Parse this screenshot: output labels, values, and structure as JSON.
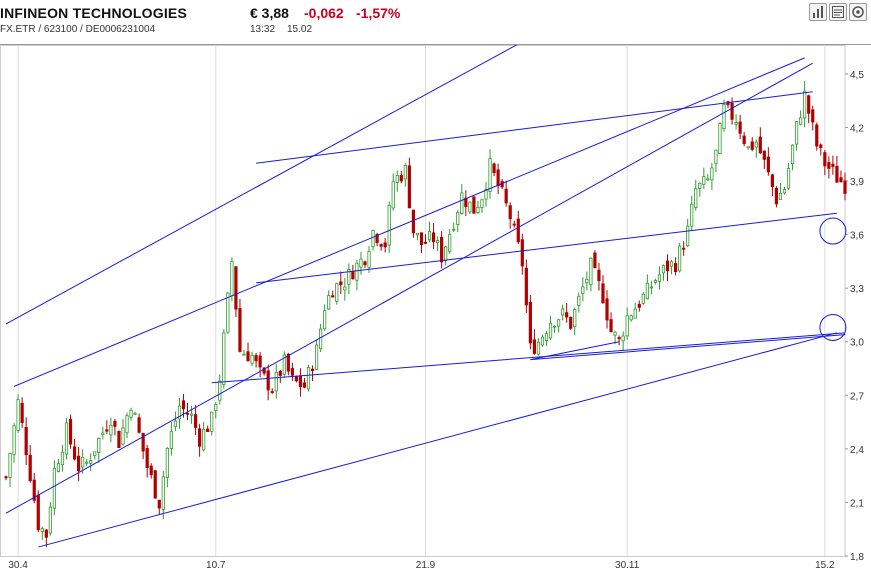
{
  "header": {
    "title": "INFINEON TECHNOLOGIES",
    "subtitle": "FX.ETR  /  623100  /  DE0006231004",
    "price": "€ 3,88",
    "change": "-0,062",
    "change_pct": "-1,57%",
    "time": "13:32",
    "date": "15.02"
  },
  "toolbar": {
    "icons": [
      "bar-chart-icon",
      "news-icon",
      "settings-icon"
    ]
  },
  "colors": {
    "up": "#2e9e2e",
    "down": "#b00000",
    "trendline": "#1a1adf",
    "grid": "#dddddd",
    "negative": "#c8001e"
  },
  "chart_data": {
    "type": "candlestick",
    "title": "",
    "xlabel": "",
    "ylabel": "",
    "ylim": [
      1.8,
      4.55
    ],
    "y_ticks": [
      1.8,
      2.1,
      2.4,
      2.7,
      3.0,
      3.3,
      3.6,
      3.9,
      4.2,
      4.5
    ],
    "y_tick_labels": [
      "1,8",
      "2,1",
      "2,4",
      "2,7",
      "3,0",
      "3,3",
      "3,6",
      "3,9",
      "4,2",
      "4,5"
    ],
    "x_range": [
      0,
      208
    ],
    "x_ticks": [
      {
        "label": "30.4",
        "x": 3
      },
      {
        "label": "10.7",
        "x": 52
      },
      {
        "label": "21.9",
        "x": 104
      },
      {
        "label": "30.11",
        "x": 154
      },
      {
        "label": "15.2",
        "x": 203
      }
    ],
    "grid": "vertical",
    "anchors": [
      [
        0,
        2.24
      ],
      [
        3,
        2.66
      ],
      [
        5,
        2.4
      ],
      [
        8,
        1.98
      ],
      [
        10,
        1.92
      ],
      [
        12,
        2.28
      ],
      [
        15,
        2.5
      ],
      [
        18,
        2.3
      ],
      [
        20,
        2.32
      ],
      [
        23,
        2.45
      ],
      [
        26,
        2.58
      ],
      [
        28,
        2.44
      ],
      [
        31,
        2.66
      ],
      [
        33,
        2.48
      ],
      [
        35,
        2.3
      ],
      [
        38,
        2.1
      ],
      [
        40,
        2.4
      ],
      [
        43,
        2.64
      ],
      [
        46,
        2.58
      ],
      [
        48,
        2.46
      ],
      [
        51,
        2.56
      ],
      [
        53,
        2.8
      ],
      [
        56,
        3.45
      ],
      [
        58,
        2.95
      ],
      [
        61,
        2.92
      ],
      [
        63,
        2.82
      ],
      [
        66,
        2.74
      ],
      [
        69,
        2.88
      ],
      [
        71,
        2.78
      ],
      [
        74,
        2.75
      ],
      [
        77,
        2.95
      ],
      [
        79,
        3.2
      ],
      [
        81,
        3.3
      ],
      [
        84,
        3.34
      ],
      [
        86,
        3.4
      ],
      [
        89,
        3.48
      ],
      [
        91,
        3.62
      ],
      [
        94,
        3.55
      ],
      [
        96,
        3.9
      ],
      [
        99,
        3.96
      ],
      [
        101,
        3.62
      ],
      [
        103,
        3.55
      ],
      [
        106,
        3.58
      ],
      [
        108,
        3.48
      ],
      [
        111,
        3.68
      ],
      [
        113,
        3.82
      ],
      [
        116,
        3.74
      ],
      [
        118,
        3.82
      ],
      [
        120,
        3.98
      ],
      [
        123,
        3.82
      ],
      [
        125,
        3.7
      ],
      [
        128,
        3.44
      ],
      [
        130,
        2.96
      ],
      [
        132,
        3.0
      ],
      [
        135,
        3.12
      ],
      [
        138,
        3.15
      ],
      [
        140,
        3.1
      ],
      [
        143,
        3.3
      ],
      [
        145,
        3.42
      ],
      [
        148,
        3.26
      ],
      [
        150,
        3.06
      ],
      [
        152,
        3.0
      ],
      [
        154,
        3.14
      ],
      [
        157,
        3.22
      ],
      [
        159,
        3.28
      ],
      [
        161,
        3.35
      ],
      [
        164,
        3.42
      ],
      [
        166,
        3.44
      ],
      [
        169,
        3.62
      ],
      [
        171,
        3.85
      ],
      [
        174,
        3.9
      ],
      [
        176,
        4.05
      ],
      [
        178,
        4.3
      ],
      [
        181,
        4.25
      ],
      [
        184,
        4.08
      ],
      [
        186,
        4.12
      ],
      [
        188,
        4.0
      ],
      [
        191,
        3.8
      ],
      [
        193,
        3.86
      ],
      [
        196,
        4.2
      ],
      [
        198,
        4.38
      ],
      [
        201,
        4.1
      ],
      [
        203,
        4.0
      ],
      [
        206,
        3.92
      ],
      [
        208,
        3.88
      ]
    ],
    "trend_lines": [
      {
        "from": [
          0,
          3.1
        ],
        "to": [
          145,
          4.89
        ]
      },
      {
        "from": [
          0,
          2.04
        ],
        "to": [
          200,
          4.56
        ]
      },
      {
        "from": [
          2,
          2.75
        ],
        "to": [
          198,
          4.59
        ]
      },
      {
        "from": [
          8,
          1.85
        ],
        "to": [
          206,
          3.05
        ]
      },
      {
        "from": [
          62,
          4.0
        ],
        "to": [
          200,
          4.4
        ]
      },
      {
        "from": [
          62,
          3.33
        ],
        "to": [
          206,
          3.72
        ]
      },
      {
        "from": [
          51,
          2.77
        ],
        "to": [
          208,
          3.05
        ]
      },
      {
        "from": [
          130,
          2.9
        ],
        "to": [
          208,
          3.04
        ]
      },
      {
        "from": [
          130,
          2.9
        ],
        "to": [
          152,
          3.0
        ]
      }
    ],
    "highlights": [
      {
        "x": 205,
        "y": 3.62
      },
      {
        "x": 205,
        "y": 3.08
      }
    ]
  }
}
